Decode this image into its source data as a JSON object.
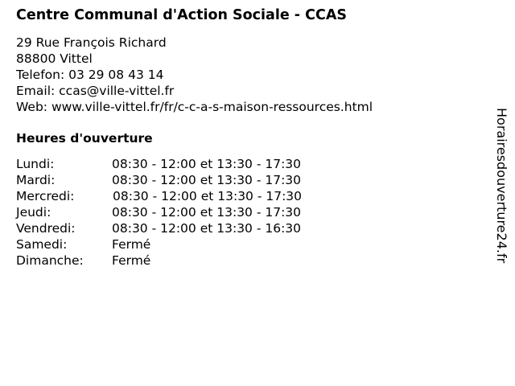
{
  "title": "Centre Communal d'Action Sociale - CCAS",
  "contact": {
    "street": "29 Rue François Richard",
    "city": "88800 Vittel",
    "phone": "Telefon: 03 29 08 43 14",
    "email": "Email: ccas@ville-vittel.fr",
    "web": "Web: www.ville-vittel.fr/fr/c-c-a-s-maison-ressources.html"
  },
  "hours_heading": "Heures d'ouverture",
  "hours": [
    {
      "day": "Lundi:",
      "time": "08:30 - 12:00 et 13:30 - 17:30"
    },
    {
      "day": "Mardi:",
      "time": "08:30 - 12:00 et 13:30 - 17:30"
    },
    {
      "day": "Mercredi:",
      "time": "08:30 - 12:00 et 13:30 - 17:30"
    },
    {
      "day": "Jeudi:",
      "time": "08:30 - 12:00 et 13:30 - 17:30"
    },
    {
      "day": "Vendredi:",
      "time": "08:30 - 12:00 et 13:30 - 16:30"
    },
    {
      "day": "Samedi:",
      "time": "Fermé"
    },
    {
      "day": "Dimanche:",
      "time": "Fermé"
    }
  ],
  "watermark": "Horairesdouverture24.fr"
}
